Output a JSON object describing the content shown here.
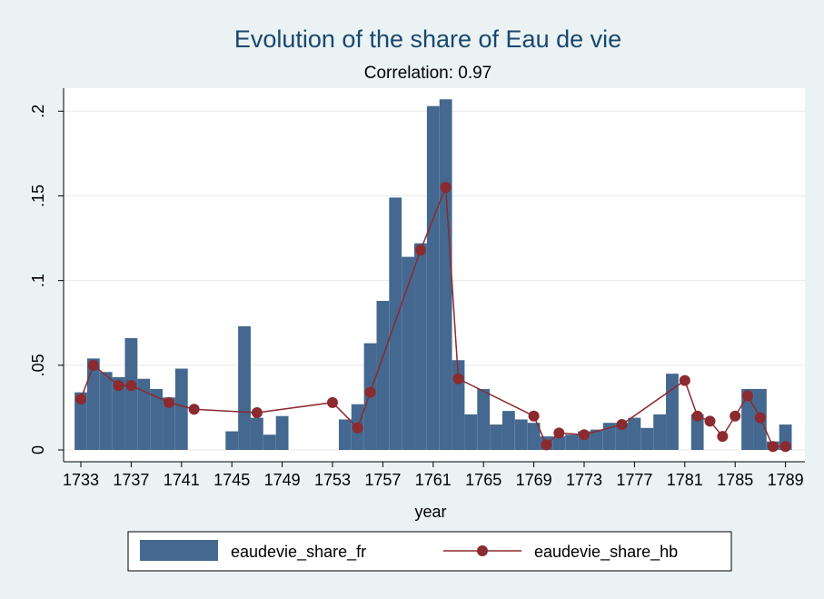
{
  "chart_data": {
    "type": "bar",
    "title": "Evolution of the share of Eau de vie",
    "subtitle": "Correlation: 0.97",
    "xlabel": "year",
    "ylabel": "",
    "xlim": [
      1732.5,
      1789.5
    ],
    "ylim": [
      0,
      0.22
    ],
    "x_ticks": [
      1733,
      1737,
      1741,
      1745,
      1749,
      1753,
      1757,
      1761,
      1765,
      1769,
      1773,
      1777,
      1781,
      1785,
      1789
    ],
    "x_tick_labels": [
      "1733",
      "1737",
      "1741",
      "1745",
      "1749",
      "1753",
      "1757",
      "1761",
      "1765",
      "1769",
      "1773",
      "1777",
      "1781",
      "1785",
      "1789"
    ],
    "y_ticks": [
      0,
      0.05,
      0.1,
      0.15,
      0.2
    ],
    "y_tick_labels": [
      "0",
      ".05",
      ".1",
      ".15",
      ".2"
    ],
    "grid": true,
    "legend_position": "bottom",
    "colors": {
      "bars": "#44688f",
      "line": "#8b2a2f",
      "plot_background": "#ffffff",
      "outer_background": "#eaf2f3",
      "title": "#1a476f"
    },
    "series": [
      {
        "name": "eaudevie_share_fr",
        "type": "bar",
        "x": [
          1733,
          1734,
          1735,
          1736,
          1737,
          1738,
          1739,
          1740,
          1741,
          1745,
          1746,
          1747,
          1748,
          1749,
          1754,
          1755,
          1756,
          1757,
          1758,
          1759,
          1760,
          1761,
          1762,
          1763,
          1764,
          1765,
          1766,
          1767,
          1768,
          1769,
          1770,
          1771,
          1772,
          1773,
          1774,
          1775,
          1776,
          1777,
          1778,
          1779,
          1780,
          1782,
          1786,
          1787,
          1788,
          1789
        ],
        "values": [
          0.034,
          0.054,
          0.046,
          0.043,
          0.066,
          0.042,
          0.036,
          0.031,
          0.048,
          0.011,
          0.073,
          0.019,
          0.009,
          0.02,
          0.018,
          0.027,
          0.063,
          0.088,
          0.149,
          0.114,
          0.122,
          0.203,
          0.207,
          0.053,
          0.021,
          0.036,
          0.015,
          0.023,
          0.018,
          0.016,
          0.008,
          0.008,
          0.009,
          0.011,
          0.012,
          0.016,
          0.016,
          0.019,
          0.013,
          0.021,
          0.045,
          0.021,
          0.036,
          0.036,
          0.005,
          0.015
        ]
      },
      {
        "name": "eaudevie_share_hb",
        "type": "line",
        "x": [
          1733,
          1734,
          1736,
          1737,
          1740,
          1742,
          1747,
          1753,
          1755,
          1756,
          1760,
          1762,
          1763,
          1769,
          1770,
          1771,
          1773,
          1776,
          1781,
          1782,
          1783,
          1784,
          1785,
          1786,
          1787,
          1788,
          1789
        ],
        "values": [
          0.03,
          0.05,
          0.038,
          0.038,
          0.028,
          0.024,
          0.022,
          0.028,
          0.013,
          0.034,
          0.118,
          0.155,
          0.042,
          0.02,
          0.003,
          0.01,
          0.009,
          0.015,
          0.041,
          0.02,
          0.017,
          0.008,
          0.02,
          0.032,
          0.019,
          0.002,
          0.002
        ]
      }
    ]
  }
}
